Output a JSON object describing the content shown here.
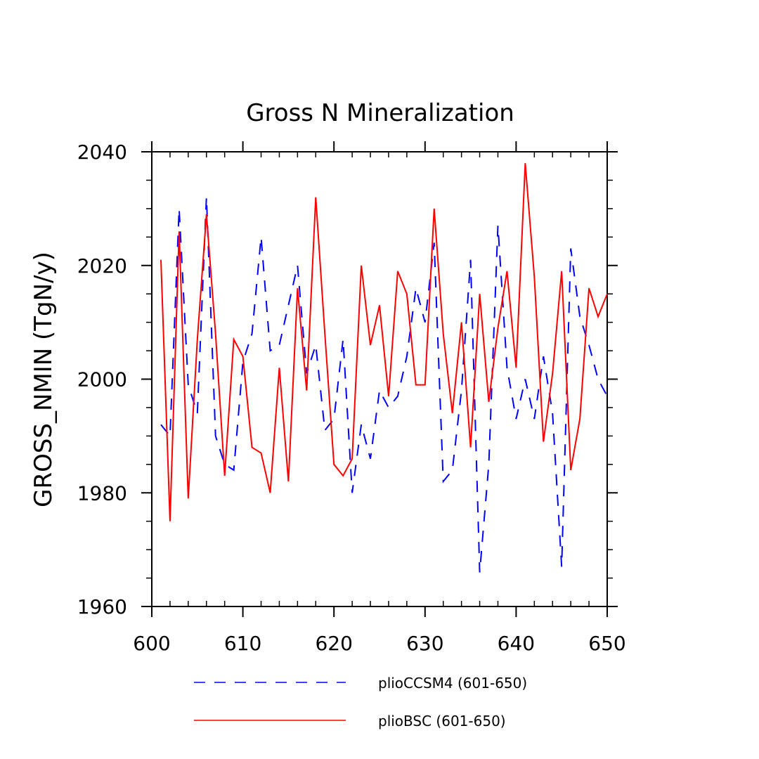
{
  "chart_data": {
    "type": "line",
    "title": "Gross N Mineralization",
    "xlabel": "",
    "ylabel": "GROSS_NMIN   (TgN/y)",
    "xlim": [
      600,
      650
    ],
    "ylim": [
      1960,
      2040
    ],
    "x_ticks": [
      600,
      610,
      620,
      630,
      640,
      650
    ],
    "x_tick_labels": [
      "600",
      "610",
      "620",
      "630",
      "640",
      "650"
    ],
    "y_ticks": [
      1960,
      1980,
      2000,
      2020,
      2040
    ],
    "y_tick_labels": [
      "1960",
      "1980",
      "2000",
      "2020",
      "2040"
    ],
    "x_minor_step": 2,
    "y_minor_step": 5,
    "grid": false,
    "legend_position": "bottom",
    "x": [
      601,
      602,
      603,
      604,
      605,
      606,
      607,
      608,
      609,
      610,
      611,
      612,
      613,
      614,
      615,
      616,
      617,
      618,
      619,
      620,
      621,
      622,
      623,
      624,
      625,
      626,
      627,
      628,
      629,
      630,
      631,
      632,
      633,
      634,
      635,
      636,
      637,
      638,
      639,
      640,
      641,
      642,
      643,
      644,
      645,
      646,
      647,
      648,
      649,
      650
    ],
    "series": [
      {
        "name": "plioCCSM4 (601-650)",
        "color": "#0000ff",
        "style": "dashed",
        "values": [
          1992,
          1990,
          2030,
          1999,
          1994,
          2032,
          1990,
          1985,
          1984,
          2003,
          2008,
          2025,
          2005,
          2006,
          2013,
          2020,
          2001,
          2006,
          1991,
          1993,
          2007,
          1980,
          1992,
          1986,
          1998,
          1995,
          1997,
          2004,
          2016,
          2010,
          2024,
          1982,
          1984,
          1998,
          2021,
          1966,
          1985,
          2027,
          2002,
          1993,
          2000,
          1993,
          2004,
          1994,
          1967,
          2023,
          2011,
          2006,
          2000,
          1997
        ]
      },
      {
        "name": "plioBSC (601-650)",
        "color": "#ff0000",
        "style": "solid",
        "values": [
          2021,
          1975,
          2026,
          1979,
          2007,
          2029,
          2008,
          1983,
          2007,
          2004,
          1988,
          1987,
          1980,
          2002,
          1982,
          2016,
          1998,
          2032,
          2008,
          1985,
          1983,
          1986,
          2020,
          2006,
          2013,
          1997,
          2019,
          2015,
          1999,
          1999,
          2030,
          2008,
          1994,
          2010,
          1988,
          2015,
          1996,
          2009,
          2019,
          2002,
          2038,
          2018,
          1989,
          2001,
          2019,
          1984,
          1993,
          2016,
          2011,
          2015
        ]
      }
    ]
  }
}
